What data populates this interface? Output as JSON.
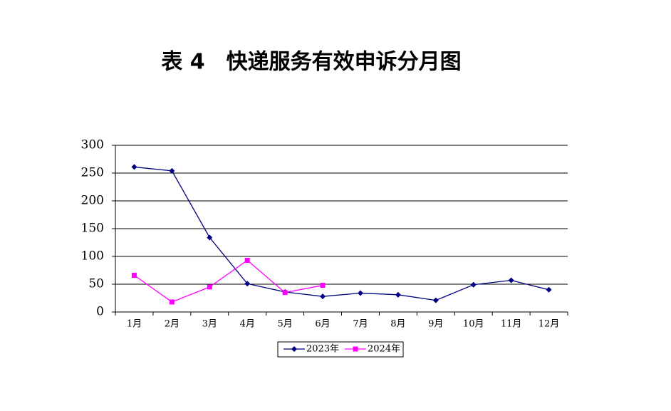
{
  "chart_data": {
    "type": "line",
    "title": "表 4　快递服务有效申诉分月图",
    "categories": [
      "1月",
      "2月",
      "3月",
      "4月",
      "5月",
      "6月",
      "7月",
      "8月",
      "9月",
      "10月",
      "11月",
      "12月"
    ],
    "series": [
      {
        "name": "2023年",
        "color": "#000080",
        "marker": "diamond",
        "values": [
          261,
          254,
          134,
          51,
          36,
          28,
          34,
          31,
          21,
          49,
          57,
          40
        ]
      },
      {
        "name": "2024年",
        "color": "#ff00ff",
        "marker": "square",
        "values": [
          66,
          18,
          45,
          93,
          35,
          48,
          null,
          null,
          null,
          null,
          null,
          null
        ]
      }
    ],
    "ylim": [
      0,
      300
    ],
    "yticks": [
      0,
      50,
      100,
      150,
      200,
      250,
      300
    ],
    "grid": true,
    "legend": "bottom"
  }
}
